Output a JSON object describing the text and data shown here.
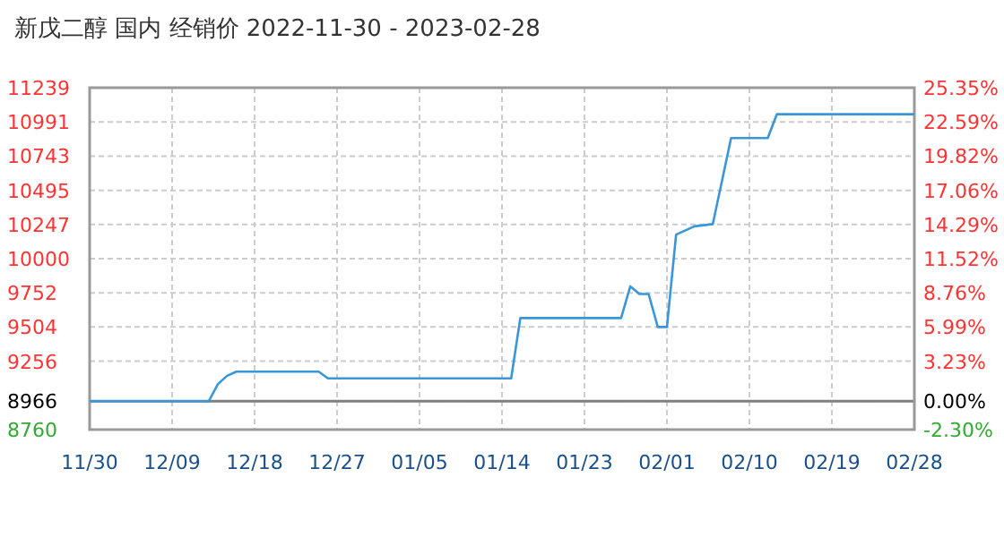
{
  "chart_data": {
    "type": "line",
    "title": "新戊二醇 国内 经销价 2022-11-30 - 2023-02-28",
    "x": [
      "2022-11-30",
      "2022-12-13",
      "2022-12-14",
      "2022-12-15",
      "2022-12-16",
      "2022-12-25",
      "2022-12-26",
      "2023-01-15",
      "2023-01-16",
      "2023-01-27",
      "2023-01-28",
      "2023-01-29",
      "2023-01-30",
      "2023-01-31",
      "2023-02-01",
      "2023-02-02",
      "2023-02-04",
      "2023-02-06",
      "2023-02-08",
      "2023-02-12",
      "2023-02-13",
      "2023-02-28"
    ],
    "series": [
      {
        "color": "#3a96d6",
        "values": [
          8966,
          8966,
          9090,
          9150,
          9180,
          9180,
          9132,
          9132,
          9569,
          9569,
          9799,
          9743,
          9743,
          9504,
          9504,
          10174,
          10234,
          10250,
          10874,
          10874,
          11047,
          11047
        ]
      }
    ],
    "xlim": [
      "2022-11-30",
      "2023-02-28"
    ],
    "xticks": [
      {
        "value": "2022-11-30",
        "label": "11/30"
      },
      {
        "value": "2022-12-09",
        "label": "12/09"
      },
      {
        "value": "2022-12-18",
        "label": "12/18"
      },
      {
        "value": "2022-12-27",
        "label": "12/27"
      },
      {
        "value": "2023-01-05",
        "label": "01/05"
      },
      {
        "value": "2023-01-14",
        "label": "01/14"
      },
      {
        "value": "2023-01-23",
        "label": "01/23"
      },
      {
        "value": "2023-02-01",
        "label": "02/01"
      },
      {
        "value": "2023-02-10",
        "label": "02/10"
      },
      {
        "value": "2023-02-19",
        "label": "02/19"
      },
      {
        "value": "2023-02-28",
        "label": "02/28"
      }
    ],
    "ylim": [
      8760,
      11239
    ],
    "yticks": [
      8760,
      8966,
      9256,
      9504,
      9752,
      10000,
      10247,
      10495,
      10743,
      10991,
      11239
    ],
    "y2lim": [
      -2.3,
      25.35
    ],
    "y2ticks": [
      {
        "value": -2.3,
        "label": "-2.30%"
      },
      {
        "value": 0,
        "label": "0.00%"
      },
      {
        "value": 3.23,
        "label": "3.23%"
      },
      {
        "value": 5.99,
        "label": "5.99%"
      },
      {
        "value": 8.76,
        "label": "8.76%"
      },
      {
        "value": 11.52,
        "label": "11.52%"
      },
      {
        "value": 14.29,
        "label": "14.29%"
      },
      {
        "value": 17.06,
        "label": "17.06%"
      },
      {
        "value": 19.82,
        "label": "19.82%"
      },
      {
        "value": 22.59,
        "label": "22.59%"
      },
      {
        "value": 25.35,
        "label": "25.35%"
      }
    ],
    "ref_lines": [
      {
        "axis": "y",
        "value": 8966,
        "color": "#808080"
      }
    ],
    "grid": true,
    "line_style": "solid",
    "marker": "none"
  }
}
